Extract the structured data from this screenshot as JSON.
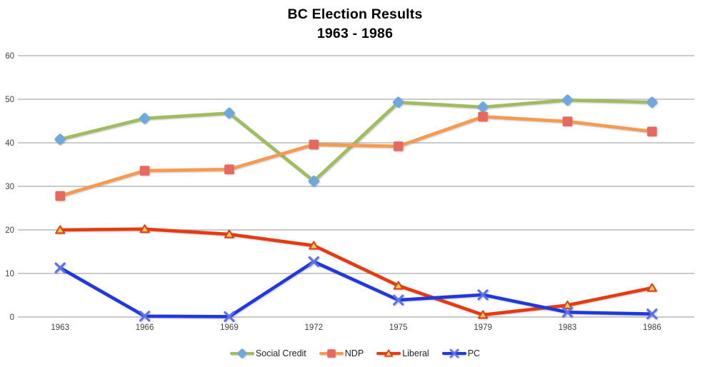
{
  "chart_data": {
    "type": "line",
    "title": "BC Election Results",
    "subtitle": "1963 - 1986",
    "categories": [
      "1963",
      "1966",
      "1969",
      "1972",
      "1975",
      "1979",
      "1983",
      "1986"
    ],
    "yticks": [
      0,
      10,
      20,
      30,
      40,
      50,
      60
    ],
    "ylim": [
      0,
      60
    ],
    "grid": "horizontal",
    "grid_color": "#ABABAB",
    "tick_color": "#3F3F3F",
    "background": "#FFFFFF",
    "legend_position": "bottom",
    "series": [
      {
        "name": "Social Credit",
        "marker": "diamond",
        "line_color": "#9FBC5F",
        "marker_color": "#6FA8DC",
        "values": [
          40.8,
          45.6,
          46.8,
          31.2,
          49.3,
          48.2,
          49.8,
          49.3
        ]
      },
      {
        "name": "NDP",
        "marker": "square",
        "line_color": "#F79A4E",
        "marker_color": "#E5695F",
        "values": [
          27.8,
          33.6,
          33.9,
          39.6,
          39.2,
          46.0,
          44.9,
          42.6
        ]
      },
      {
        "name": "Liberal",
        "marker": "triangle",
        "line_color": "#E63A10",
        "marker_color": "#D8CE63",
        "values": [
          20.0,
          20.2,
          19.0,
          16.4,
          7.2,
          0.5,
          2.7,
          6.7
        ]
      },
      {
        "name": "PC",
        "marker": "x",
        "line_color": "#2038DC",
        "marker_color": "#5E72E8",
        "values": [
          11.3,
          0.2,
          0.1,
          12.7,
          3.9,
          5.1,
          1.1,
          0.7
        ]
      }
    ]
  }
}
